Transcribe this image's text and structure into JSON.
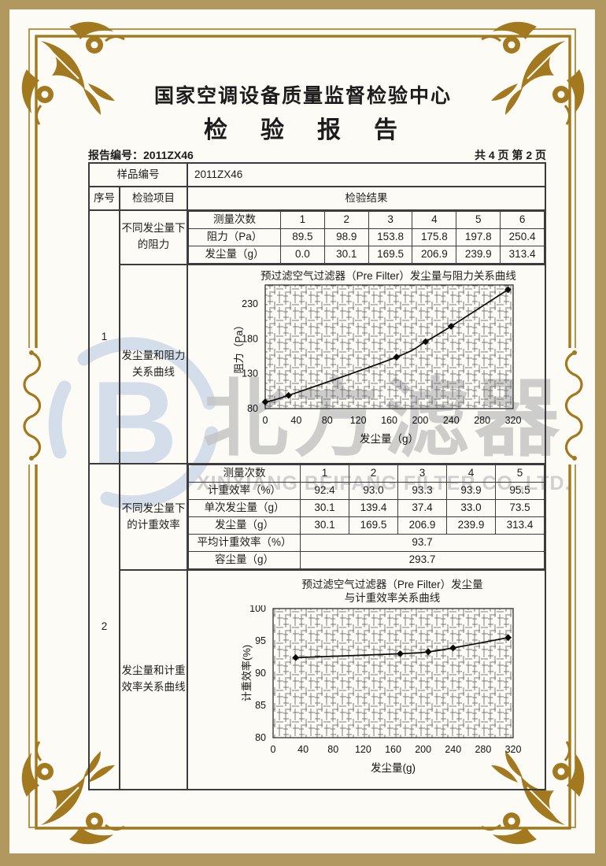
{
  "header": {
    "org_title": "国家空调设备质量监督检验中心",
    "report_title": "检　验　报　告",
    "report_no": "报告编号：2011ZX46",
    "page_info": "共 4 页 第 2 页"
  },
  "table": {
    "sample_label": "样品编号",
    "sample_value": "2011ZX46",
    "col_seq": "序号",
    "col_item": "检验项目",
    "col_result": "检验结果",
    "block1": {
      "seq": "1",
      "item_top": "不同发尘量下的阻力",
      "item_bottom": "发尘量和阻力关系曲线",
      "rows": [
        {
          "label": "测量次数",
          "values": [
            "1",
            "2",
            "3",
            "4",
            "5",
            "6"
          ]
        },
        {
          "label": "阻力（Pa）",
          "values": [
            "89.5",
            "98.9",
            "153.8",
            "175.8",
            "197.8",
            "250.4"
          ]
        },
        {
          "label": "发尘量（g）",
          "values": [
            "0.0",
            "30.1",
            "169.5",
            "206.9",
            "239.9",
            "313.4"
          ]
        }
      ]
    },
    "block2": {
      "seq": "2",
      "item_top": "不同发尘量下的计重效率",
      "item_bottom": "发尘量和计重效率关系曲线",
      "rows": [
        {
          "label": "测量次数",
          "values": [
            "1",
            "2",
            "3",
            "4",
            "5"
          ]
        },
        {
          "label": "计重效率（%）",
          "values": [
            "92.4",
            "93.0",
            "93.3",
            "93.9",
            "95.5"
          ]
        },
        {
          "label": "单次发尘量（g）",
          "values": [
            "30.1",
            "139.4",
            "37.4",
            "33.0",
            "73.5"
          ]
        },
        {
          "label": "发尘量（g）",
          "values": [
            "30.1",
            "169.5",
            "206.9",
            "239.9",
            "313.4"
          ]
        }
      ],
      "avg_label": "平均计重效率（%）",
      "avg_value": "93.7",
      "capacity_label": "容尘量（g）",
      "capacity_value": "293.7"
    }
  },
  "chart_data": [
    {
      "type": "line",
      "title_lines": [
        "预过滤空气过滤器（Pre Filter）发尘量与阻力关系曲线"
      ],
      "xlabel": "发尘量（g）",
      "ylabel": "阻力（Pa）",
      "x": [
        0,
        30.1,
        169.5,
        206.9,
        239.9,
        313.4
      ],
      "y": [
        89.5,
        98.9,
        153.8,
        175.8,
        197.8,
        250.4
      ],
      "xlim": [
        0,
        320
      ],
      "ylim": [
        80,
        257
      ],
      "xticks": [
        0,
        40,
        80,
        120,
        160,
        200,
        240,
        280,
        320
      ],
      "yticks": [
        80,
        130,
        180,
        230
      ],
      "grid": "dense-crosshatch",
      "legend": "none"
    },
    {
      "type": "line",
      "title_lines": [
        "预过滤空气过滤器（Pre Filter）发尘量",
        "与计重效率关系曲线"
      ],
      "xlabel": "发尘量(g)",
      "ylabel": "计重效率(%)",
      "x": [
        30.1,
        169.5,
        206.9,
        239.9,
        313.4
      ],
      "y": [
        92.4,
        93.0,
        93.3,
        93.9,
        95.5
      ],
      "xlim": [
        0,
        320
      ],
      "ylim": [
        80,
        100
      ],
      "xticks": [
        0,
        40,
        80,
        120,
        160,
        200,
        240,
        280,
        320
      ],
      "yticks": [
        80,
        85,
        90,
        95,
        100
      ],
      "grid": "dense-crosshatch",
      "legend": "none"
    }
  ],
  "watermark": {
    "logo_letter": "B",
    "cn_text": "北方滤器",
    "en_text": "XINXIANG BEIFANG FILTER CO.,LTD."
  },
  "colors": {
    "frame_gold": "#a2791f",
    "outer_band": "#b0985f",
    "paper": "#fdfbf5",
    "watermark_blue": "#b9cbe4",
    "watermark_gray": "#c5c5c5",
    "ink": "#1c1c1c"
  }
}
